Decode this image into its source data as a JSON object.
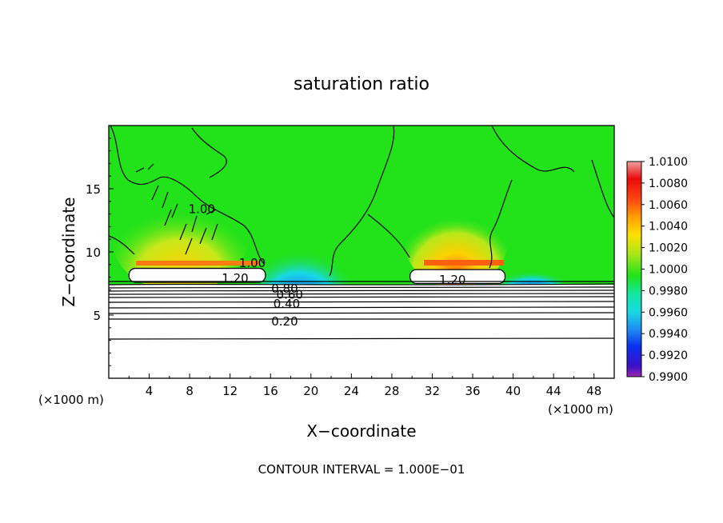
{
  "chart_data": {
    "type": "heatmap",
    "title": "saturation ratio",
    "xlabel": "X−coordinate",
    "ylabel": "Z−coordinate",
    "x_unit_left": "(×1000 m)",
    "x_unit_right": "(×1000 m)",
    "footer": "CONTOUR INTERVAL = 1.000E−01",
    "xlim": [
      0,
      50
    ],
    "ylim": [
      0,
      20
    ],
    "x_ticks": [
      4,
      8,
      12,
      16,
      20,
      24,
      28,
      32,
      36,
      40,
      44,
      48
    ],
    "y_ticks": [
      5,
      10,
      15
    ],
    "colorbar": {
      "min": 0.99,
      "max": 1.01,
      "labels": [
        "1.0100",
        "1.0080",
        "1.0060",
        "1.0040",
        "1.0020",
        "1.0000",
        "0.9980",
        "0.9960",
        "0.9940",
        "0.9920",
        "0.9900"
      ],
      "colors": [
        "#9b27b0",
        "#3a10c8",
        "#0a30f0",
        "#1e8cf4",
        "#18d8e4",
        "#14e6a8",
        "#20e418",
        "#aae61a",
        "#ffe000",
        "#ffa000",
        "#ff4a10",
        "#ea0a0a",
        "#f2a0a0"
      ]
    },
    "contour_labels": [
      {
        "text": "1.20",
        "x": 12.5,
        "y": 7.9
      },
      {
        "text": "1.20",
        "x": 34.0,
        "y": 7.8
      },
      {
        "text": "1.00",
        "x": 9.2,
        "y": 13.4
      },
      {
        "text": "1.00",
        "x": 14.2,
        "y": 9.1
      },
      {
        "text": "0.80",
        "x": 17.4,
        "y": 7.1
      },
      {
        "text": "0.60",
        "x": 17.9,
        "y": 6.6
      },
      {
        "text": "0.40",
        "x": 17.6,
        "y": 5.9
      },
      {
        "text": "0.20",
        "x": 17.4,
        "y": 4.5
      }
    ],
    "cloud_regions": [
      {
        "x0": 2.0,
        "x1": 15.5,
        "z0": 7.6,
        "z1": 8.7
      },
      {
        "x0": 29.8,
        "x1": 39.2,
        "z0": 7.5,
        "z1": 8.6
      }
    ]
  }
}
